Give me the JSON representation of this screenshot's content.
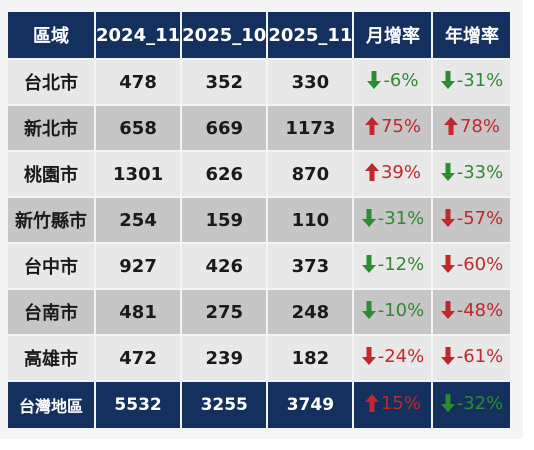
{
  "table": {
    "headers": [
      "區域",
      "2024_11",
      "2025_10",
      "2025_11",
      "月增率",
      "年增率"
    ],
    "rows": [
      {
        "region": "台北市",
        "v2024_11": "478",
        "v2025_10": "352",
        "v2025_11": "330",
        "mom": {
          "text": "-6%",
          "direction": "down",
          "color": "#2e8b30",
          "icon": "arrow-down-icon"
        },
        "yoy": {
          "text": "-31%",
          "direction": "down",
          "color": "#2e8b30",
          "icon": "arrow-down-icon"
        }
      },
      {
        "region": "新北市",
        "v2024_11": "658",
        "v2025_10": "669",
        "v2025_11": "1173",
        "mom": {
          "text": "75%",
          "direction": "up",
          "color": "#c0282b",
          "icon": "arrow-up-icon"
        },
        "yoy": {
          "text": "78%",
          "direction": "up",
          "color": "#c0282b",
          "icon": "arrow-up-icon"
        }
      },
      {
        "region": "桃園市",
        "v2024_11": "1301",
        "v2025_10": "626",
        "v2025_11": "870",
        "mom": {
          "text": "39%",
          "direction": "up",
          "color": "#c0282b",
          "icon": "arrow-up-icon"
        },
        "yoy": {
          "text": "-33%",
          "direction": "down",
          "color": "#2e8b30",
          "icon": "arrow-down-icon"
        }
      },
      {
        "region": "新竹縣市",
        "v2024_11": "254",
        "v2025_10": "159",
        "v2025_11": "110",
        "mom": {
          "text": "-31%",
          "direction": "down",
          "color": "#2e8b30",
          "icon": "arrow-down-icon"
        },
        "yoy": {
          "text": "-57%",
          "direction": "down",
          "color": "#c0282b",
          "icon": "arrow-down-icon"
        }
      },
      {
        "region": "台中市",
        "v2024_11": "927",
        "v2025_10": "426",
        "v2025_11": "373",
        "mom": {
          "text": "-12%",
          "direction": "down",
          "color": "#2e8b30",
          "icon": "arrow-down-icon"
        },
        "yoy": {
          "text": "-60%",
          "direction": "down",
          "color": "#c0282b",
          "icon": "arrow-down-icon"
        }
      },
      {
        "region": "台南市",
        "v2024_11": "481",
        "v2025_10": "275",
        "v2025_11": "248",
        "mom": {
          "text": "-10%",
          "direction": "down",
          "color": "#2e8b30",
          "icon": "arrow-down-icon"
        },
        "yoy": {
          "text": "-48%",
          "direction": "down",
          "color": "#c0282b",
          "icon": "arrow-down-icon"
        }
      },
      {
        "region": "高雄市",
        "v2024_11": "472",
        "v2025_10": "239",
        "v2025_11": "182",
        "mom": {
          "text": "-24%",
          "direction": "down",
          "color": "#c0282b",
          "icon": "arrow-down-icon"
        },
        "yoy": {
          "text": "-61%",
          "direction": "down",
          "color": "#c0282b",
          "icon": "arrow-down-icon"
        }
      }
    ],
    "total": {
      "region": "台灣地區",
      "v2024_11": "5532",
      "v2025_10": "3255",
      "v2025_11": "3749",
      "mom": {
        "text": "15%",
        "direction": "up",
        "color": "#c0282b",
        "icon": "arrow-up-icon"
      },
      "yoy": {
        "text": "-32%",
        "direction": "down",
        "color": "#2e8b30",
        "icon": "arrow-down-icon"
      }
    }
  },
  "colors": {
    "header_bg": "#14305e",
    "row_light": "#e8e8e8",
    "row_dark": "#c6c6c6",
    "up_red": "#c0282b",
    "down_green": "#2e8b30"
  }
}
